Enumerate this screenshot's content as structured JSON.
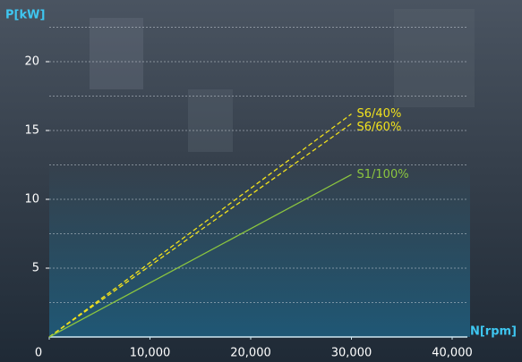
{
  "chart_data": {
    "type": "line",
    "x_label": "N[rpm]",
    "y_label": "P[kW]",
    "series": [
      {
        "name": "S6/40%",
        "color": "#f2e21c",
        "style": "dashed",
        "x": [
          0,
          30000
        ],
        "values": [
          0,
          16.2
        ]
      },
      {
        "name": "S6/60%",
        "color": "#f2e21c",
        "style": "dashed",
        "x": [
          0,
          30000
        ],
        "values": [
          0,
          15.5
        ]
      },
      {
        "name": "S1/100%",
        "color": "#8cc63f",
        "style": "solid",
        "x": [
          0,
          30000
        ],
        "values": [
          0,
          11.8
        ]
      }
    ],
    "xlim": [
      0,
      40000
    ],
    "xticks": [
      0,
      {
        "value": 10000,
        "label": "10,000"
      },
      {
        "value": 20000,
        "label": "20,000"
      },
      {
        "value": 30000,
        "label": "30,000"
      },
      {
        "value": 40000,
        "label": "40,000"
      }
    ],
    "ylim": [
      0,
      22.5
    ],
    "yticks": [
      5,
      10,
      15,
      20
    ],
    "ygrid": [
      2.5,
      5,
      7.5,
      10,
      12.5,
      15,
      17.5,
      20,
      22.5
    ],
    "grid": true
  }
}
